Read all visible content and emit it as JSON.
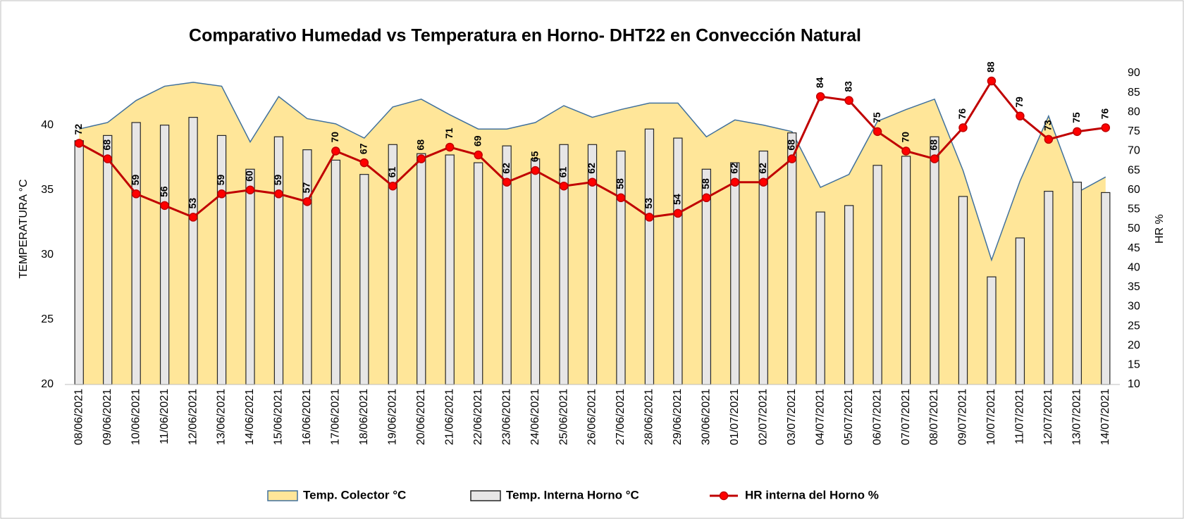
{
  "chart_data": {
    "type": "combo",
    "title": "Comparativo  Humedad vs Temperatura  en Horno- DHT22 en Convección Natural",
    "y_label": "TEMPERATURA °C",
    "y2_label": "HR %",
    "categories": [
      "08/06/2021",
      "09/06/2021",
      "10/06/2021",
      "11/06/2021",
      "12/06/2021",
      "13/06/2021",
      "14/06/2021",
      "15/06/2021",
      "16/06/2021",
      "17/06/2021",
      "18/06/2021",
      "19/06/2021",
      "20/06/2021",
      "21/06/2021",
      "22/06/2021",
      "23/06/2021",
      "24/06/2021",
      "25/06/2021",
      "26/06/2021",
      "27/06/2021",
      "28/06/2021",
      "29/06/2021",
      "30/06/2021",
      "01/07/2021",
      "02/07/2021",
      "03/07/2021",
      "04/07/2021",
      "05/07/2021",
      "06/07/2021",
      "07/07/2021",
      "08/07/2021",
      "09/07/2021",
      "10/07/2021",
      "11/07/2021",
      "12/07/2021",
      "13/07/2021",
      "14/07/2021"
    ],
    "series": [
      {
        "name": "Temp. Colector °C",
        "type": "area",
        "color": "#ffe699",
        "stroke": "#41719c",
        "values": [
          39.7,
          40.2,
          41.9,
          43.0,
          43.3,
          43.0,
          38.7,
          42.2,
          40.5,
          40.1,
          39.0,
          41.4,
          42.0,
          40.8,
          39.7,
          39.7,
          40.2,
          41.5,
          40.6,
          41.2,
          41.7,
          41.7,
          39.1,
          40.4,
          40.0,
          39.5,
          35.2,
          36.2,
          40.3,
          41.2,
          42.0,
          36.5,
          29.6,
          35.7,
          40.7,
          34.8,
          36.0
        ]
      },
      {
        "name": "Temp. Interna Horno °C",
        "type": "bar",
        "color": "#e7e6e6",
        "stroke": "#262626",
        "values": [
          38.8,
          39.2,
          40.2,
          40.0,
          40.6,
          39.2,
          36.6,
          39.1,
          38.1,
          37.3,
          36.2,
          38.5,
          37.8,
          37.7,
          37.1,
          38.4,
          37.4,
          38.5,
          38.5,
          38.0,
          39.7,
          39.0,
          36.6,
          37.1,
          38.0,
          39.4,
          33.3,
          33.8,
          36.9,
          37.6,
          39.1,
          34.5,
          28.3,
          31.3,
          34.9,
          35.6,
          34.8
        ]
      },
      {
        "name": "HR interna del Horno %",
        "type": "line",
        "axis": "y2",
        "color": "#c00000",
        "markers": true,
        "data_labels": true,
        "values": [
          72,
          68,
          59,
          56,
          53,
          59,
          60,
          59,
          57,
          70,
          67,
          61,
          68,
          71,
          69,
          62,
          65,
          61,
          62,
          58,
          53,
          54,
          58,
          62,
          62,
          68,
          84,
          83,
          75,
          70,
          68,
          76,
          88,
          79,
          73,
          75,
          76
        ]
      }
    ],
    "ylim": [
      20,
      44
    ],
    "yticks": [
      20,
      25,
      30,
      35,
      40
    ],
    "y2lim": [
      10,
      90
    ],
    "y2ticks": [
      10,
      15,
      20,
      25,
      30,
      35,
      40,
      45,
      50,
      55,
      60,
      65,
      70,
      75,
      80,
      85,
      90
    ],
    "grid": false,
    "legend": "bottom"
  }
}
